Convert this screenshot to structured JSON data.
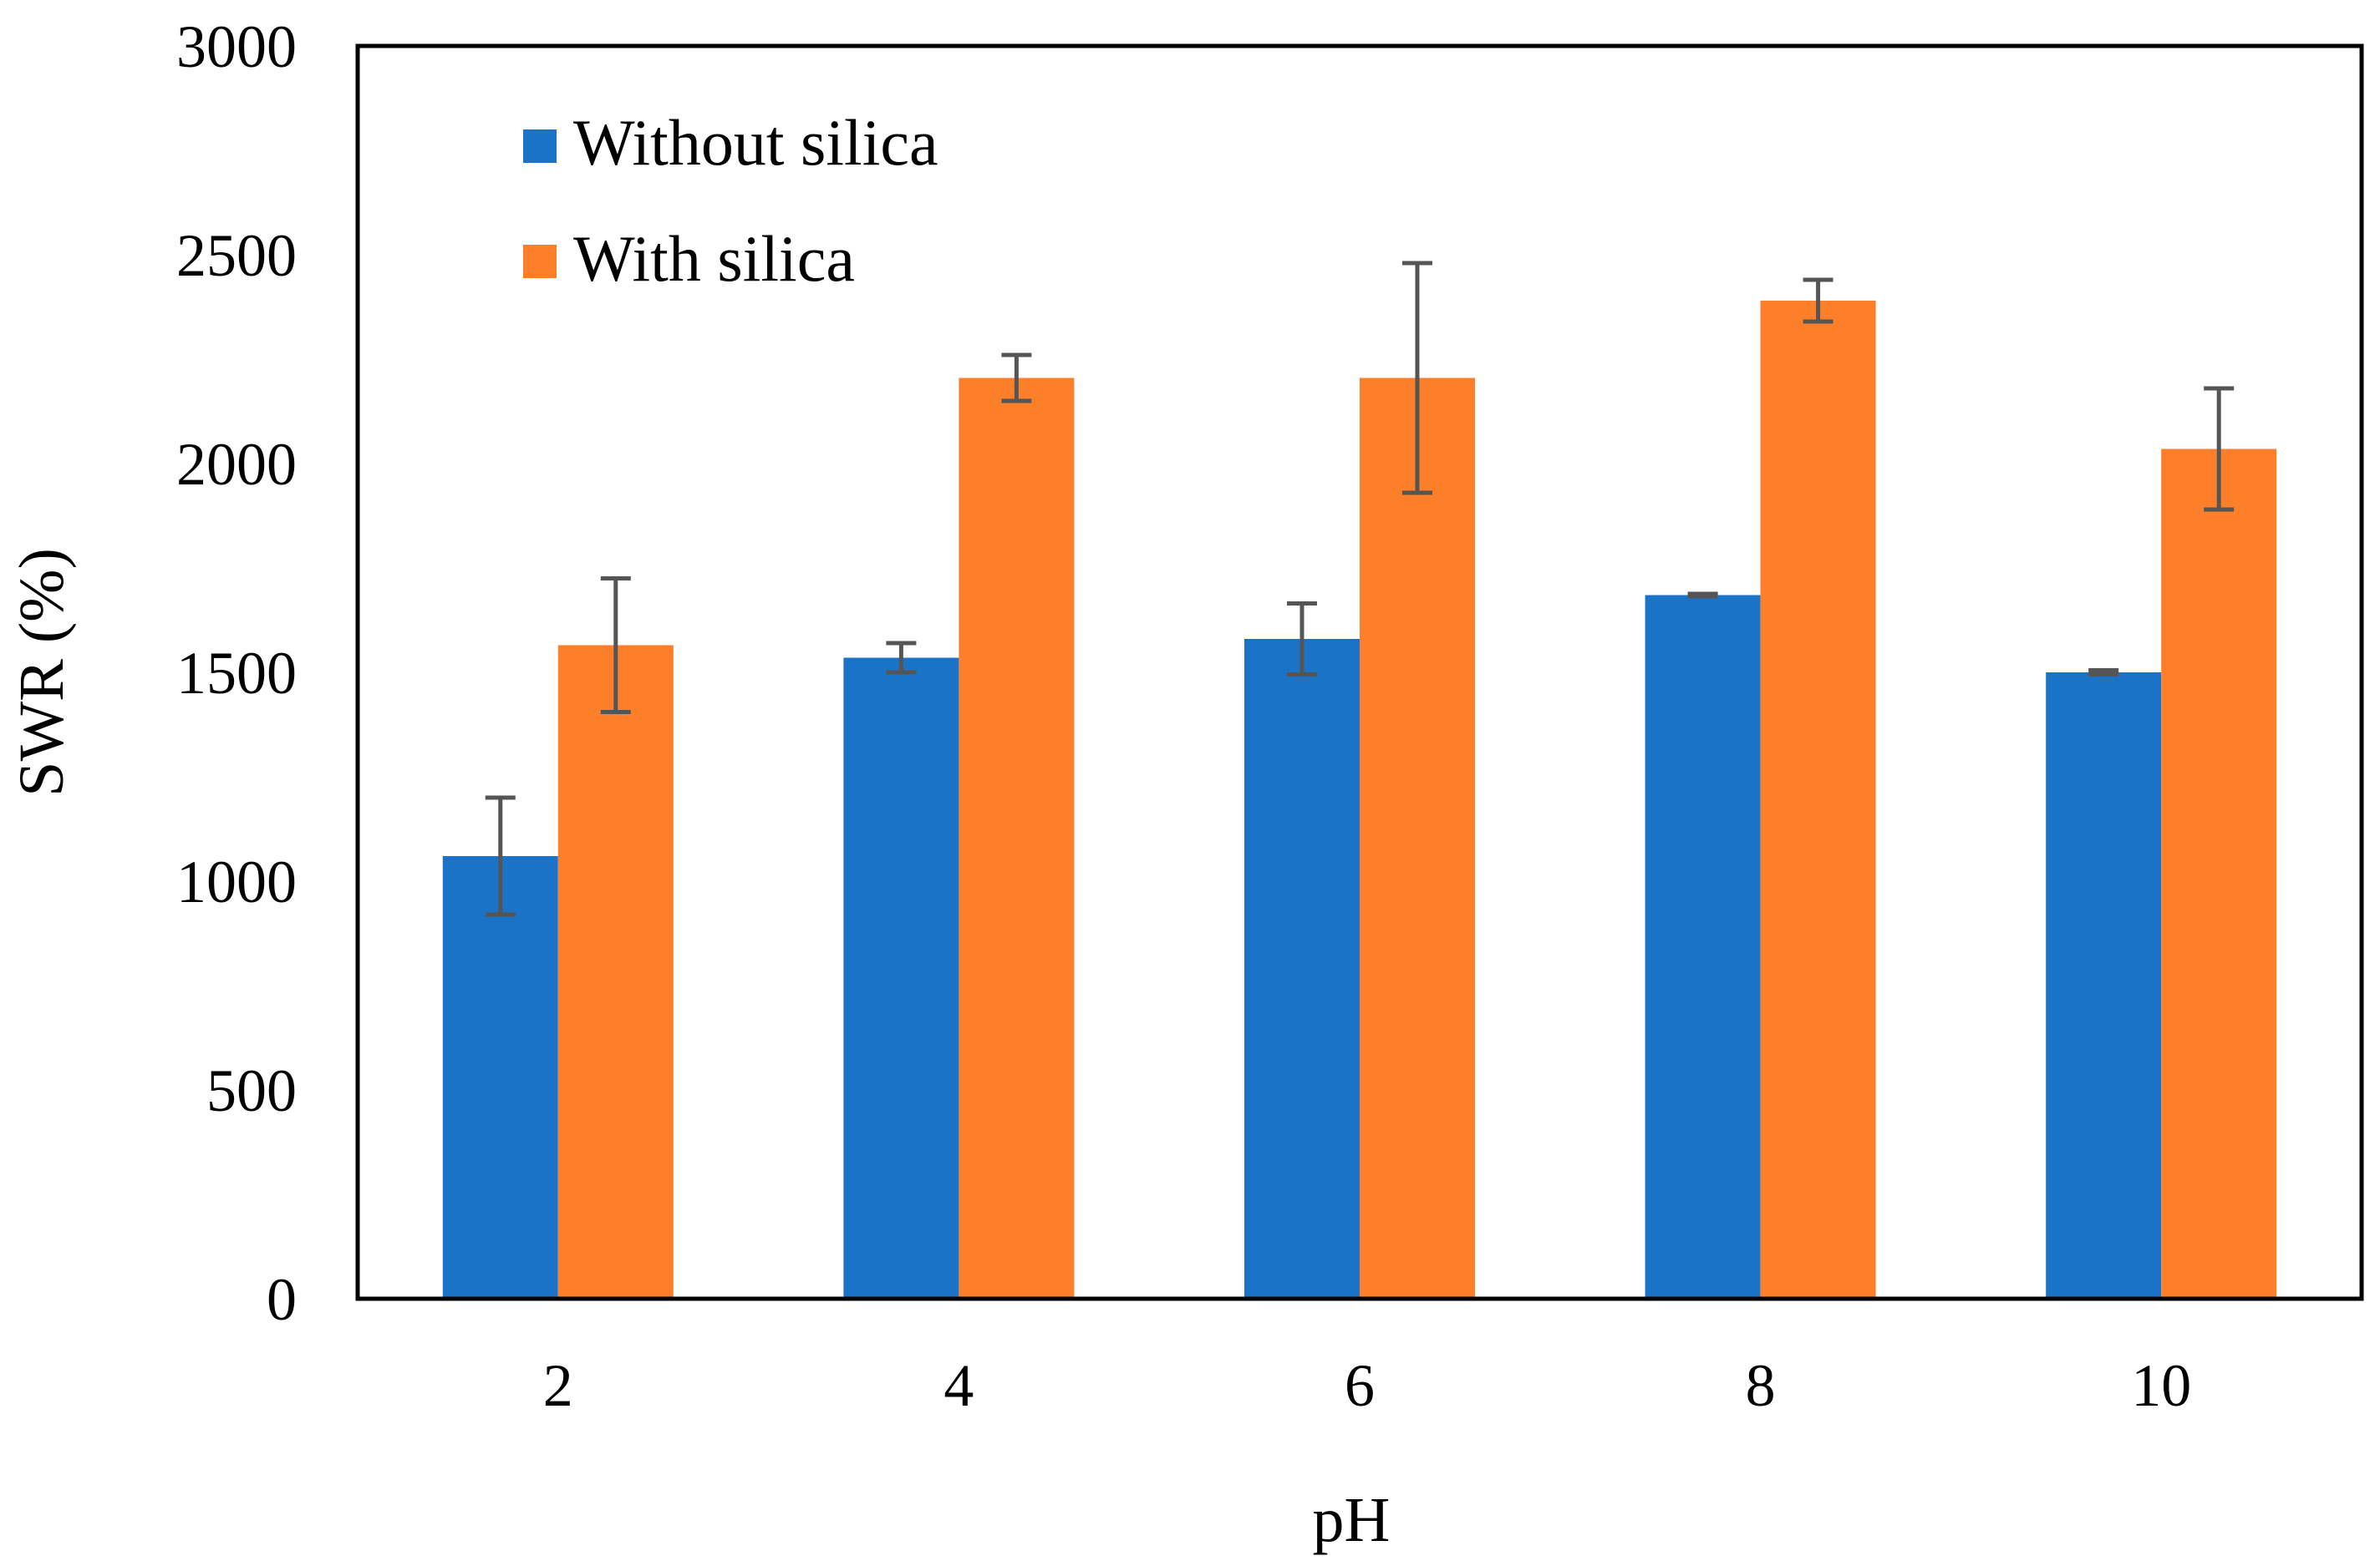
{
  "chart_data": {
    "type": "bar",
    "title": "",
    "xlabel": "pH",
    "ylabel": "SWR (%)",
    "ylim": [
      0,
      3000
    ],
    "yticks": [
      0,
      500,
      1000,
      1500,
      2000,
      2500,
      3000
    ],
    "categories": [
      "2",
      "4",
      "6",
      "8",
      "10"
    ],
    "legend_position": "top-left",
    "series": [
      {
        "name": "Without silica",
        "color": "#1b73c8",
        "values": [
          1060,
          1535,
          1580,
          1685,
          1500
        ],
        "errors": [
          140,
          35,
          85,
          3,
          5
        ]
      },
      {
        "name": "With silica",
        "color": "#fe7f29",
        "values": [
          1565,
          2205,
          2205,
          2390,
          2035
        ],
        "errors": [
          160,
          55,
          275,
          50,
          145
        ]
      }
    ],
    "error_bar_color": "#555555"
  }
}
